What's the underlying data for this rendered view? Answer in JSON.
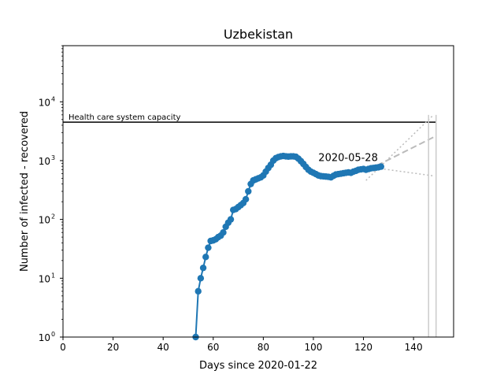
{
  "chart_data": {
    "type": "line",
    "title": "Uzbekistan",
    "xlabel": "Days since 2020-01-22",
    "ylabel": "Number of infected - recovered",
    "y_scale": "log",
    "xlim": [
      0,
      156
    ],
    "ylim": [
      1,
      90000
    ],
    "x_ticks": [
      0,
      20,
      40,
      60,
      80,
      100,
      120,
      140
    ],
    "x_tick_labels": [
      "0",
      "20",
      "40",
      "60",
      "80",
      "100",
      "120",
      "140"
    ],
    "y_ticks": [
      1,
      10,
      100,
      1000,
      10000
    ],
    "y_tick_labels": [
      "10",
      "10",
      "10",
      "10",
      "10"
    ],
    "y_tick_exponents": [
      "0",
      "1",
      "2",
      "3",
      "4"
    ],
    "capacity": {
      "label": "Health care system capacity",
      "value": 4500,
      "x_start": 0,
      "x_end": 149
    },
    "annotation": {
      "text": "2020-05-28",
      "x": 102,
      "y": 900
    },
    "series": [
      {
        "color": "#1f77b4",
        "x": [
          53,
          54,
          55,
          56,
          57,
          58,
          59,
          60,
          61,
          62,
          63,
          64,
          65,
          66,
          67,
          68,
          69,
          70,
          71,
          72,
          73,
          74,
          75,
          76,
          77,
          78,
          79,
          80,
          81,
          82,
          83,
          84,
          85,
          86,
          87,
          88,
          89,
          90,
          91,
          92,
          93,
          94,
          95,
          96,
          97,
          98,
          99,
          100,
          101,
          102,
          103,
          104,
          105,
          106,
          107,
          108,
          109,
          110,
          111,
          112,
          113,
          114,
          115,
          116,
          117,
          118,
          119,
          120,
          121,
          122,
          123,
          124,
          125,
          126,
          127
        ],
        "y": [
          1,
          6,
          10,
          15,
          23,
          33,
          43,
          44,
          46,
          50,
          53,
          60,
          75,
          88,
          100,
          145,
          150,
          162,
          175,
          190,
          220,
          300,
          400,
          460,
          480,
          500,
          520,
          560,
          650,
          750,
          850,
          1000,
          1100,
          1150,
          1180,
          1200,
          1180,
          1170,
          1180,
          1180,
          1160,
          1080,
          980,
          880,
          780,
          700,
          650,
          620,
          590,
          560,
          545,
          540,
          535,
          530,
          520,
          550,
          580,
          590,
          600,
          610,
          620,
          630,
          620,
          650,
          670,
          700,
          710,
          720,
          700,
          720,
          740,
          750,
          760,
          770,
          790
        ]
      }
    ],
    "projection": {
      "color": "#bbbbbb",
      "dashed": {
        "x": [
          122,
          148
        ],
        "y": [
          700,
          2500
        ]
      },
      "dotted_lines": [
        {
          "x": [
            121,
            148
          ],
          "y": [
            460,
            6000
          ]
        },
        {
          "x": [
            122,
            148
          ],
          "y": [
            780,
            550
          ]
        }
      ],
      "vertical_lines": [
        146,
        149
      ]
    }
  }
}
